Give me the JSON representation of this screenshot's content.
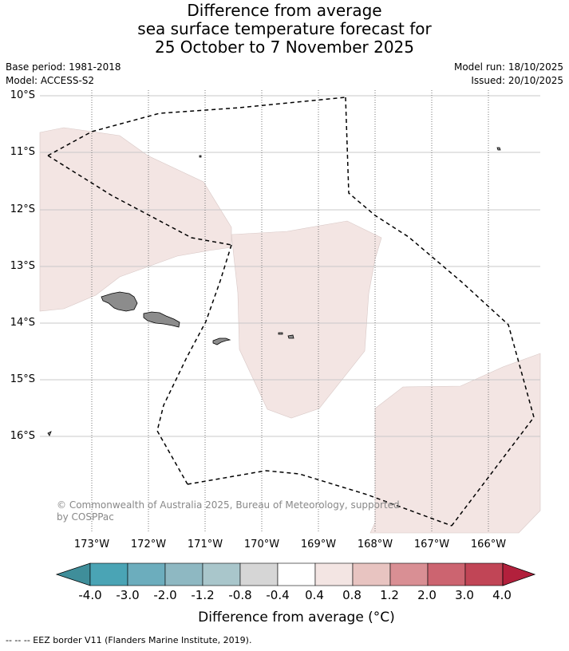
{
  "title": {
    "line1": "Difference from average",
    "line2": "sea surface temperature forecast for",
    "line3": "25 October to 7 November 2025"
  },
  "meta": {
    "base_period": "Base period: 1981-2018",
    "model": "Model: ACCESS-S2",
    "model_run": "Model run: 18/10/2025",
    "issued": "Issued: 20/10/2025"
  },
  "map": {
    "lat_labels": [
      "10°S",
      "11°S",
      "12°S",
      "13°S",
      "14°S",
      "15°S",
      "16°S"
    ],
    "lon_labels": [
      "173°W",
      "172°W",
      "171°W",
      "170°W",
      "169°W",
      "168°W",
      "167°W",
      "166°W"
    ],
    "anomaly_fill_color": "#f3e5e3",
    "land_color": "#8c8c8c",
    "eez_line_color": "#000000"
  },
  "colorbar": {
    "labels": [
      "-4.0",
      "-3.0",
      "-2.0",
      "-1.2",
      "-0.8",
      "-0.4",
      "0.4",
      "0.8",
      "1.2",
      "2.0",
      "3.0",
      "4.0"
    ],
    "colors": [
      "#3f8e9a",
      "#4aa4b5",
      "#6cadbd",
      "#8eb8c2",
      "#a9c6cb",
      "#d6d6d6",
      "#ffffff",
      "#f3e5e3",
      "#e8c4c1",
      "#d98f94",
      "#cc6470",
      "#c14556",
      "#b2203c"
    ],
    "title": "Difference from average (°C)"
  },
  "credit": "© Commonwealth of Australia 2025, Bureau of Meteorology, supported by COSPPac",
  "footnote": "-- -- -- EEZ border V11 (Flanders Marine Institute, 2019)."
}
